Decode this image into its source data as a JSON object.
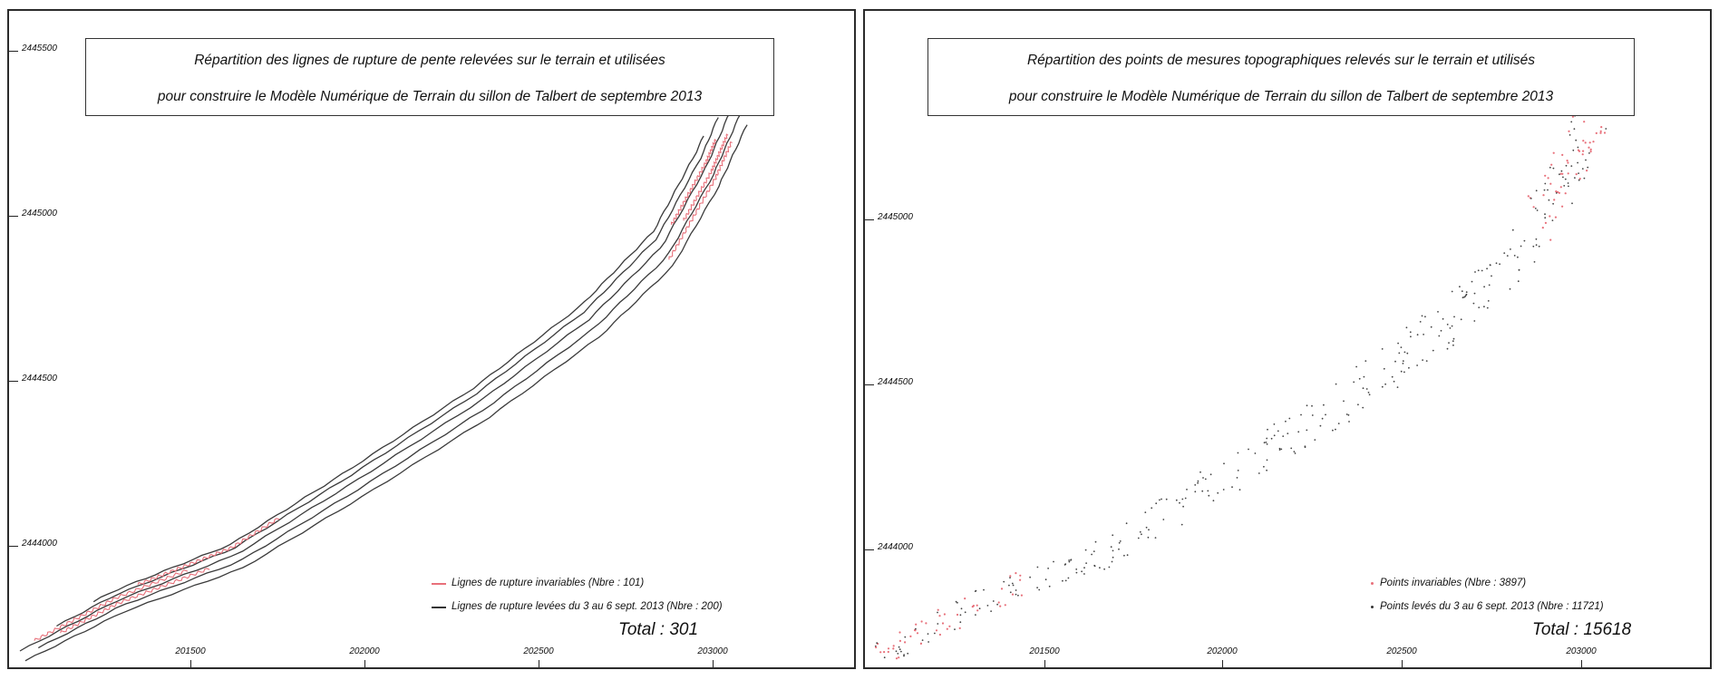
{
  "left_panel": {
    "title_line1": "Répartition des lignes de rupture de pente relevées sur le terrain et utilisées",
    "title_line2": "pour construire le Modèle Numérique de Terrain du sillon de Talbert de septembre 2013",
    "y_ticks": [
      "2445500",
      "2445000",
      "2444500",
      "2444000"
    ],
    "x_ticks": [
      "201500",
      "202000",
      "202500",
      "203000"
    ],
    "legend": [
      {
        "label": "Lignes de rupture invariables (Nbre : 101)",
        "color": "#e8707a"
      },
      {
        "label": "Lignes de rupture levées du 3 au 6 sept. 2013 (Nbre : 200)",
        "color": "#333333"
      }
    ],
    "total": "Total : 301"
  },
  "right_panel": {
    "title_line1": "Répartition des points de mesures topographiques relevés sur le terrain et utilisés",
    "title_line2": "pour construire le Modèle Numérique de Terrain du sillon de Talbert de septembre 2013",
    "y_ticks": [
      "2445000",
      "2444500",
      "2444000"
    ],
    "x_ticks": [
      "201500",
      "202000",
      "202500",
      "203000"
    ],
    "legend": [
      {
        "label": "Points invariables (Nbre : 3897)",
        "color": "#e8707a"
      },
      {
        "label": "Points levés du 3 au 6 sept. 2013 (Nbre : 11721)",
        "color": "#333333"
      }
    ],
    "total": "Total : 15618"
  },
  "colors": {
    "invariable": "#e8707a",
    "surveyed": "#333333",
    "frame": "#2b2b2b"
  }
}
